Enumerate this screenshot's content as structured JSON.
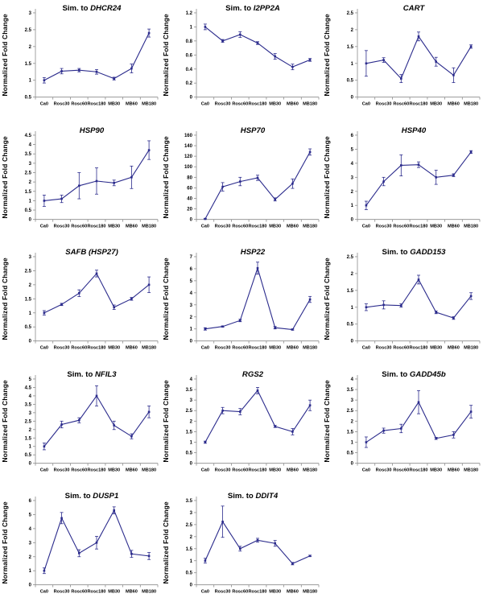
{
  "figure": {
    "ylabel": "Normalized Fold Change",
    "line_color": "#2b2b8c",
    "axis_color": "#8c8c8c",
    "text_color": "#000000",
    "background": "#ffffff",
    "categories": [
      "Ca0",
      "Rosc30",
      "Rosc60",
      "Rosc180",
      "MB30",
      "MB60",
      "MB180"
    ]
  },
  "chart_data": [
    {
      "id": "dhcr24",
      "type": "line",
      "title": "Sim. to DHCR24",
      "title_prefix": "Sim. to ",
      "title_gene": "DHCR24",
      "ylabel": "Normalized Fold Change",
      "categories": [
        "Ca0",
        "Rosc30",
        "Rosc60",
        "Rosc180",
        "MB30",
        "MB60",
        "MB180"
      ],
      "values": [
        1.0,
        1.27,
        1.3,
        1.25,
        1.05,
        1.35,
        2.4
      ],
      "errors": [
        0.08,
        0.08,
        0.05,
        0.07,
        0.04,
        0.13,
        0.12
      ],
      "ylim": [
        0.5,
        3
      ],
      "ytick_step": 0.5
    },
    {
      "id": "i2pp2a",
      "type": "line",
      "title": "Sim. to I2PP2A",
      "title_prefix": "Sim. to ",
      "title_gene": "I2PP2A",
      "ylabel": "Normalized Fold Change",
      "categories": [
        "Ca0",
        "Rosc30",
        "Rosc60",
        "Rosc180",
        "MB30",
        "MB60",
        "MB180"
      ],
      "values": [
        1.0,
        0.8,
        0.89,
        0.77,
        0.58,
        0.43,
        0.53
      ],
      "errors": [
        0.04,
        0.02,
        0.04,
        0.02,
        0.04,
        0.04,
        0.02
      ],
      "ylim": [
        0,
        1.2
      ],
      "ytick_step": 0.2
    },
    {
      "id": "cart",
      "type": "line",
      "title": "CART",
      "title_prefix": "",
      "title_gene": "CART",
      "ylabel": "Normalized Fold Change",
      "categories": [
        "Ca0",
        "Rosc30",
        "Rosc60",
        "Rosc180",
        "MB30",
        "MB60",
        "MB180"
      ],
      "values": [
        1.0,
        1.1,
        0.55,
        1.8,
        1.05,
        0.65,
        1.5
      ],
      "errors": [
        0.38,
        0.07,
        0.12,
        0.13,
        0.13,
        0.22,
        0.05
      ],
      "ylim": [
        0,
        2.5
      ],
      "ytick_step": 0.5
    },
    {
      "id": "hsp90",
      "type": "line",
      "title": "HSP90",
      "title_prefix": "",
      "title_gene": "HSP90",
      "ylabel": "Normalized Fold Change",
      "categories": [
        "Ca0",
        "Rosc30",
        "Rosc60",
        "Rosc180",
        "MB30",
        "MB60",
        "MB180"
      ],
      "values": [
        1.0,
        1.1,
        1.8,
        2.05,
        1.95,
        2.25,
        3.7
      ],
      "errors": [
        0.3,
        0.2,
        0.7,
        0.7,
        0.15,
        0.6,
        0.5
      ],
      "ylim": [
        0,
        4.5
      ],
      "ytick_step": 0.5
    },
    {
      "id": "hsp70",
      "type": "line",
      "title": "HSP70",
      "title_prefix": "",
      "title_gene": "HSP70",
      "ylabel": "Normalized Fold Change",
      "categories": [
        "Ca0",
        "Rosc30",
        "Rosc60",
        "Rosc180",
        "MB30",
        "MB60",
        "MB180"
      ],
      "values": [
        1,
        62,
        72,
        79,
        38,
        68,
        128
      ],
      "errors": [
        1,
        8,
        8,
        5,
        3,
        9,
        6
      ],
      "ylim": [
        0,
        160
      ],
      "ytick_step": 20
    },
    {
      "id": "hsp40",
      "type": "line",
      "title": "HSP40",
      "title_prefix": "",
      "title_gene": "HSP40",
      "ylabel": "Normalized Fold Change",
      "categories": [
        "Ca0",
        "Rosc30",
        "Rosc60",
        "Rosc180",
        "MB30",
        "MB60",
        "MB180"
      ],
      "values": [
        1.0,
        2.7,
        3.85,
        3.9,
        3.0,
        3.15,
        4.8
      ],
      "errors": [
        0.3,
        0.3,
        0.75,
        0.2,
        0.5,
        0.1,
        0.1
      ],
      "ylim": [
        0,
        6
      ],
      "ytick_step": 1
    },
    {
      "id": "safb-hsp27",
      "type": "line",
      "title": "SAFB (HSP27)",
      "title_prefix": "",
      "title_gene": "SAFB (HSP27)",
      "ylabel": "Normalized Fold Change",
      "categories": [
        "Ca0",
        "Rosc30",
        "Rosc60",
        "Rosc180",
        "MB30",
        "MB60",
        "MB180"
      ],
      "values": [
        1.0,
        1.3,
        1.7,
        2.4,
        1.2,
        1.5,
        2.0
      ],
      "errors": [
        0.08,
        0.04,
        0.12,
        0.12,
        0.08,
        0.05,
        0.28
      ],
      "ylim": [
        0,
        3
      ],
      "ytick_step": 0.5
    },
    {
      "id": "hsp22",
      "type": "line",
      "title": "HSP22",
      "title_prefix": "",
      "title_gene": "HSP22",
      "ylabel": "Normalized Fold Change",
      "categories": [
        "Ca0",
        "Rosc30",
        "Rosc60",
        "Rosc180",
        "MB30",
        "MB60",
        "MB180"
      ],
      "values": [
        1.0,
        1.2,
        1.7,
        6.05,
        1.1,
        0.95,
        3.45
      ],
      "errors": [
        0.1,
        0.05,
        0.1,
        0.5,
        0.1,
        0.05,
        0.25
      ],
      "ylim": [
        0,
        7
      ],
      "ytick_step": 1
    },
    {
      "id": "gadd153",
      "type": "line",
      "title": "Sim. to GADD153",
      "title_prefix": "Sim. to ",
      "title_gene": "GADD153",
      "ylabel": "Normalized Fold Change",
      "categories": [
        "Ca0",
        "Rosc30",
        "Rosc60",
        "Rosc180",
        "MB30",
        "MB60",
        "MB180"
      ],
      "values": [
        1.0,
        1.07,
        1.05,
        1.82,
        0.85,
        0.68,
        1.33
      ],
      "errors": [
        0.1,
        0.12,
        0.05,
        0.13,
        0.04,
        0.04,
        0.1
      ],
      "ylim": [
        0,
        2.5
      ],
      "ytick_step": 0.5
    },
    {
      "id": "nfil3",
      "type": "line",
      "title": "Sim. to NFIL3",
      "title_prefix": "Sim. to ",
      "title_gene": "NFIL3",
      "ylabel": "Normalized Fold Change",
      "categories": [
        "Ca0",
        "Rosc30",
        "Rosc60",
        "Rosc180",
        "MB30",
        "MB60",
        "MB180"
      ],
      "values": [
        1.0,
        2.3,
        2.55,
        4.0,
        2.25,
        1.6,
        3.05
      ],
      "errors": [
        0.2,
        0.2,
        0.15,
        0.6,
        0.25,
        0.15,
        0.35
      ],
      "ylim": [
        0,
        5
      ],
      "ytick_step": 0.5
    },
    {
      "id": "rgs2",
      "type": "line",
      "title": "RGS2",
      "title_prefix": "",
      "title_gene": "RGS2",
      "ylabel": "Normalized Fold Change",
      "categories": [
        "Ca0",
        "Rosc30",
        "Rosc60",
        "Rosc180",
        "MB30",
        "MB60",
        "MB180"
      ],
      "values": [
        1.0,
        2.5,
        2.45,
        3.45,
        1.75,
        1.5,
        2.75
      ],
      "errors": [
        0.05,
        0.15,
        0.15,
        0.15,
        0.05,
        0.15,
        0.25
      ],
      "ylim": [
        0,
        4
      ],
      "ytick_step": 0.5
    },
    {
      "id": "gadd45b",
      "type": "line",
      "title": "Sim. to GADD45b",
      "title_prefix": "Sim. to ",
      "title_gene": "GADD45b",
      "ylabel": "Normalized Fold Change",
      "categories": [
        "Ca0",
        "Rosc30",
        "Rosc60",
        "Rosc180",
        "MB30",
        "MB60",
        "MB180"
      ],
      "values": [
        1.0,
        1.55,
        1.65,
        2.9,
        1.18,
        1.35,
        2.45
      ],
      "errors": [
        0.25,
        0.12,
        0.2,
        0.55,
        0.05,
        0.15,
        0.3
      ],
      "ylim": [
        0,
        4
      ],
      "ytick_step": 0.5
    },
    {
      "id": "dusp1",
      "type": "line",
      "title": "Sim. to DUSP1",
      "title_prefix": "Sim. to ",
      "title_gene": "DUSP1",
      "ylabel": "Normalized Fold Change",
      "categories": [
        "Ca0",
        "Rosc30",
        "Rosc60",
        "Rosc180",
        "MB30",
        "MB60",
        "MB180"
      ],
      "values": [
        1.0,
        4.75,
        2.25,
        3.0,
        5.3,
        2.2,
        2.05
      ],
      "errors": [
        0.2,
        0.4,
        0.25,
        0.45,
        0.25,
        0.25,
        0.25
      ],
      "ylim": [
        0,
        6
      ],
      "ytick_step": 1
    },
    {
      "id": "ddit4",
      "type": "line",
      "title": "Sim. to DDIT4",
      "title_prefix": "Sim. to ",
      "title_gene": "DDIT4",
      "ylabel": "Normalized Fold Change",
      "categories": [
        "Ca0",
        "Rosc30",
        "Rosc60",
        "Rosc180",
        "MB30",
        "MB60",
        "MB180"
      ],
      "values": [
        1.0,
        2.62,
        1.5,
        1.85,
        1.72,
        0.88,
        1.2
      ],
      "errors": [
        0.1,
        0.65,
        0.1,
        0.08,
        0.12,
        0.05,
        0.03
      ],
      "ylim": [
        0,
        3.5
      ],
      "ytick_step": 0.5
    }
  ]
}
